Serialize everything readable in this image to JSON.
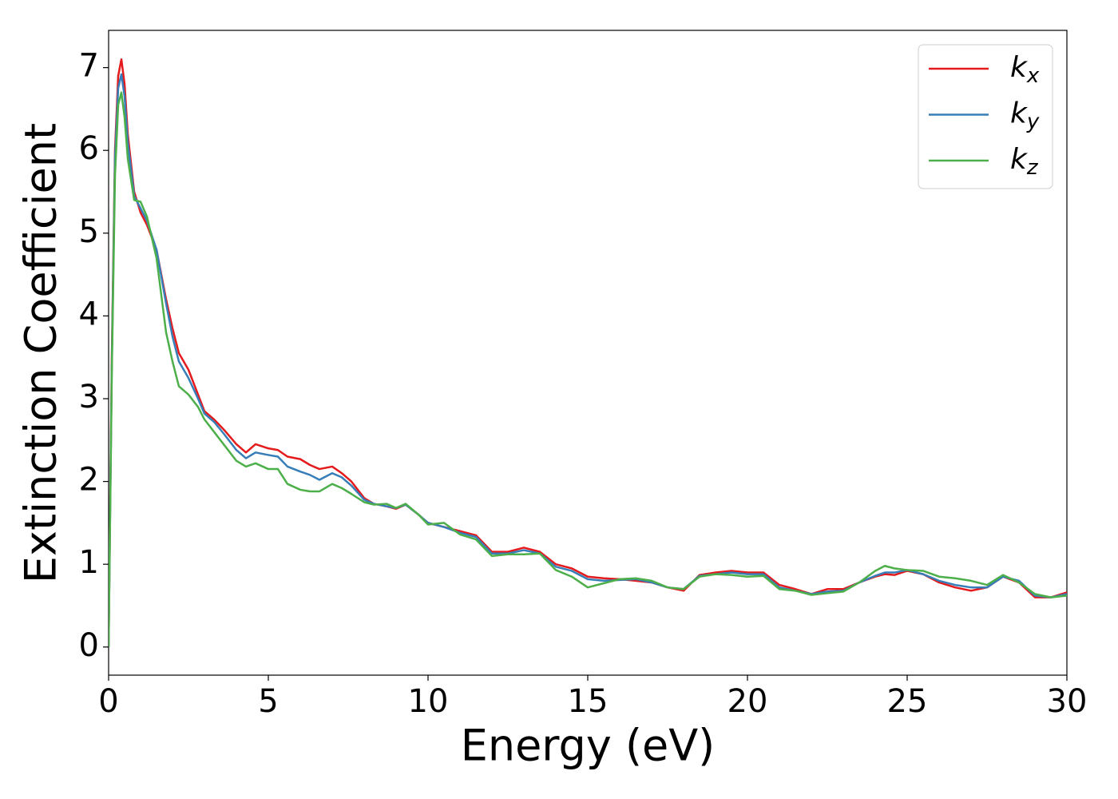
{
  "chart_data": {
    "type": "line",
    "xlabel": "Energy (eV)",
    "ylabel": "Extinction Coefficient",
    "x": [
      0,
      0.1,
      0.2,
      0.3,
      0.4,
      0.5,
      0.6,
      0.8,
      1.0,
      1.2,
      1.5,
      1.8,
      2.0,
      2.2,
      2.5,
      2.8,
      3.0,
      3.3,
      3.6,
      4.0,
      4.3,
      4.6,
      5.0,
      5.3,
      5.6,
      6.0,
      6.3,
      6.6,
      7.0,
      7.3,
      7.6,
      8.0,
      8.3,
      8.7,
      9.0,
      9.3,
      9.7,
      10.0,
      10.5,
      11.0,
      11.5,
      12.0,
      12.5,
      13.0,
      13.5,
      14.0,
      14.5,
      15.0,
      15.5,
      16.0,
      16.5,
      17.0,
      17.5,
      18.0,
      18.5,
      19.0,
      19.5,
      20.0,
      20.5,
      21.0,
      21.5,
      22.0,
      22.5,
      23.0,
      23.5,
      24.0,
      24.3,
      24.6,
      25.0,
      25.5,
      26.0,
      26.5,
      27.0,
      27.5,
      28.0,
      28.5,
      29.0,
      29.5,
      30.0
    ],
    "series": [
      {
        "name": "kx",
        "color": "#e41a1c",
        "values": [
          0,
          3.5,
          6.0,
          6.9,
          7.1,
          6.8,
          6.2,
          5.5,
          5.25,
          5.1,
          4.8,
          4.2,
          3.85,
          3.55,
          3.35,
          3.05,
          2.85,
          2.75,
          2.63,
          2.45,
          2.35,
          2.45,
          2.4,
          2.38,
          2.3,
          2.27,
          2.2,
          2.15,
          2.18,
          2.1,
          2.0,
          1.8,
          1.73,
          1.7,
          1.67,
          1.72,
          1.6,
          1.5,
          1.45,
          1.4,
          1.35,
          1.15,
          1.15,
          1.2,
          1.15,
          1.0,
          0.95,
          0.85,
          0.83,
          0.82,
          0.8,
          0.78,
          0.72,
          0.68,
          0.87,
          0.9,
          0.92,
          0.9,
          0.9,
          0.75,
          0.7,
          0.64,
          0.7,
          0.7,
          0.78,
          0.85,
          0.88,
          0.87,
          0.92,
          0.88,
          0.78,
          0.72,
          0.68,
          0.72,
          0.85,
          0.78,
          0.6,
          0.6,
          0.66
        ]
      },
      {
        "name": "ky",
        "color": "#377eb8",
        "values": [
          0,
          3.4,
          5.9,
          6.75,
          6.92,
          6.65,
          6.1,
          5.45,
          5.3,
          5.15,
          4.8,
          4.15,
          3.75,
          3.45,
          3.25,
          3.0,
          2.82,
          2.72,
          2.58,
          2.38,
          2.28,
          2.35,
          2.32,
          2.3,
          2.18,
          2.12,
          2.08,
          2.02,
          2.1,
          2.05,
          1.95,
          1.78,
          1.73,
          1.7,
          1.68,
          1.72,
          1.6,
          1.5,
          1.45,
          1.38,
          1.33,
          1.13,
          1.13,
          1.17,
          1.13,
          0.97,
          0.92,
          0.82,
          0.8,
          0.81,
          0.82,
          0.78,
          0.72,
          0.7,
          0.86,
          0.88,
          0.9,
          0.88,
          0.88,
          0.72,
          0.68,
          0.64,
          0.67,
          0.68,
          0.78,
          0.86,
          0.9,
          0.9,
          0.93,
          0.88,
          0.8,
          0.75,
          0.72,
          0.72,
          0.85,
          0.8,
          0.62,
          0.6,
          0.64
        ]
      },
      {
        "name": "kz",
        "color": "#4daf4a",
        "values": [
          0,
          3.3,
          5.7,
          6.55,
          6.7,
          6.4,
          5.9,
          5.4,
          5.38,
          5.2,
          4.7,
          3.8,
          3.45,
          3.15,
          3.05,
          2.9,
          2.75,
          2.6,
          2.45,
          2.25,
          2.18,
          2.22,
          2.15,
          2.15,
          1.97,
          1.9,
          1.88,
          1.88,
          1.97,
          1.92,
          1.85,
          1.75,
          1.72,
          1.73,
          1.68,
          1.73,
          1.6,
          1.48,
          1.5,
          1.36,
          1.3,
          1.1,
          1.12,
          1.12,
          1.13,
          0.93,
          0.85,
          0.72,
          0.77,
          0.82,
          0.83,
          0.8,
          0.72,
          0.7,
          0.85,
          0.88,
          0.87,
          0.85,
          0.86,
          0.7,
          0.68,
          0.63,
          0.65,
          0.67,
          0.78,
          0.92,
          0.98,
          0.95,
          0.93,
          0.92,
          0.85,
          0.83,
          0.8,
          0.75,
          0.87,
          0.78,
          0.64,
          0.6,
          0.62
        ]
      }
    ],
    "xlim": [
      0,
      30
    ],
    "xticks": [
      0,
      5,
      10,
      15,
      20,
      25,
      30
    ],
    "ylim": [
      -0.34,
      7.45
    ],
    "yticks": [
      0,
      1,
      2,
      3,
      4,
      5,
      6,
      7
    ],
    "grid": false,
    "legend": "upper right"
  }
}
